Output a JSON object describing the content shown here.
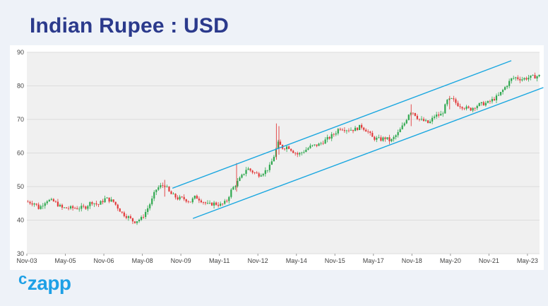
{
  "title": "Indian Rupee : USD",
  "brand": {
    "prefix": "c",
    "name": "zapp",
    "color": "#1ea0e6"
  },
  "colors": {
    "up": "#2fa84f",
    "down": "#e23b3b",
    "channel": "#1aa7e0",
    "grid": "#dcdcdc",
    "plot_bg": "#f0f0f0",
    "title": "#2b3a8c"
  },
  "chart_data": {
    "type": "candlestick",
    "title": "Indian Rupee : USD",
    "xlabel": "",
    "ylabel": "",
    "ylim": [
      30,
      90
    ],
    "yticks": [
      30,
      40,
      50,
      60,
      70,
      80,
      90
    ],
    "xticks": [
      "Nov-03",
      "May-05",
      "Nov-06",
      "May-08",
      "Nov-09",
      "May-11",
      "Nov-12",
      "May-14",
      "Nov-15",
      "May-17",
      "Nov-18",
      "May-20",
      "Nov-21",
      "May-23"
    ],
    "xrange": [
      2003.83,
      2023.8
    ],
    "grid": "horizontal",
    "price_path": [
      {
        "t": 2003.83,
        "v": 45.5
      },
      {
        "t": 2004.15,
        "v": 45.0
      },
      {
        "t": 2004.3,
        "v": 43.5
      },
      {
        "t": 2004.6,
        "v": 46.0
      },
      {
        "t": 2004.9,
        "v": 45.5
      },
      {
        "t": 2005.2,
        "v": 43.6
      },
      {
        "t": 2005.8,
        "v": 43.6
      },
      {
        "t": 2006.1,
        "v": 43.8
      },
      {
        "t": 2006.35,
        "v": 45.5
      },
      {
        "t": 2006.6,
        "v": 44.5
      },
      {
        "t": 2006.9,
        "v": 46.5
      },
      {
        "t": 2007.2,
        "v": 45.5
      },
      {
        "t": 2007.55,
        "v": 42.0
      },
      {
        "t": 2007.8,
        "v": 40.8
      },
      {
        "t": 2008.0,
        "v": 39.5
      },
      {
        "t": 2008.3,
        "v": 40.5
      },
      {
        "t": 2008.5,
        "v": 43.0
      },
      {
        "t": 2008.7,
        "v": 46.0
      },
      {
        "t": 2008.85,
        "v": 49.0
      },
      {
        "t": 2009.0,
        "v": 50.0
      },
      {
        "t": 2009.2,
        "v": 50.5
      },
      {
        "t": 2009.4,
        "v": 48.0
      },
      {
        "t": 2009.7,
        "v": 46.5
      },
      {
        "t": 2009.9,
        "v": 46.5
      },
      {
        "t": 2010.2,
        "v": 45.5
      },
      {
        "t": 2010.4,
        "v": 47.0
      },
      {
        "t": 2010.6,
        "v": 46.0
      },
      {
        "t": 2010.9,
        "v": 44.5
      },
      {
        "t": 2011.1,
        "v": 45.0
      },
      {
        "t": 2011.4,
        "v": 44.5
      },
      {
        "t": 2011.6,
        "v": 45.5
      },
      {
        "t": 2011.8,
        "v": 49.0
      },
      {
        "t": 2012.0,
        "v": 51.0
      },
      {
        "t": 2012.2,
        "v": 53.0
      },
      {
        "t": 2012.4,
        "v": 55.5
      },
      {
        "t": 2012.6,
        "v": 54.5
      },
      {
        "t": 2012.85,
        "v": 53.5
      },
      {
        "t": 2013.1,
        "v": 54.5
      },
      {
        "t": 2013.3,
        "v": 56.0
      },
      {
        "t": 2013.5,
        "v": 60.0
      },
      {
        "t": 2013.6,
        "v": 63.0
      },
      {
        "t": 2013.8,
        "v": 61.5
      },
      {
        "t": 2014.0,
        "v": 62.0
      },
      {
        "t": 2014.2,
        "v": 60.5
      },
      {
        "t": 2014.4,
        "v": 59.5
      },
      {
        "t": 2014.7,
        "v": 61.0
      },
      {
        "t": 2014.9,
        "v": 62.0
      },
      {
        "t": 2015.2,
        "v": 62.5
      },
      {
        "t": 2015.4,
        "v": 63.5
      },
      {
        "t": 2015.6,
        "v": 64.5
      },
      {
        "t": 2015.85,
        "v": 66.0
      },
      {
        "t": 2016.0,
        "v": 67.5
      },
      {
        "t": 2016.3,
        "v": 67.0
      },
      {
        "t": 2016.6,
        "v": 67.0
      },
      {
        "t": 2016.85,
        "v": 68.0
      },
      {
        "t": 2017.1,
        "v": 66.5
      },
      {
        "t": 2017.3,
        "v": 64.5
      },
      {
        "t": 2017.6,
        "v": 64.0
      },
      {
        "t": 2017.8,
        "v": 64.5
      },
      {
        "t": 2018.0,
        "v": 63.5
      },
      {
        "t": 2018.3,
        "v": 66.0
      },
      {
        "t": 2018.55,
        "v": 69.0
      },
      {
        "t": 2018.75,
        "v": 72.5
      },
      {
        "t": 2018.9,
        "v": 72.0
      },
      {
        "t": 2019.1,
        "v": 70.0
      },
      {
        "t": 2019.3,
        "v": 69.5
      },
      {
        "t": 2019.5,
        "v": 68.8
      },
      {
        "t": 2019.7,
        "v": 71.0
      },
      {
        "t": 2020.0,
        "v": 71.5
      },
      {
        "t": 2020.2,
        "v": 75.5
      },
      {
        "t": 2020.4,
        "v": 76.0
      },
      {
        "t": 2020.6,
        "v": 74.5
      },
      {
        "t": 2020.9,
        "v": 73.5
      },
      {
        "t": 2021.1,
        "v": 73.0
      },
      {
        "t": 2021.3,
        "v": 74.0
      },
      {
        "t": 2021.5,
        "v": 74.5
      },
      {
        "t": 2021.8,
        "v": 75.0
      },
      {
        "t": 2022.0,
        "v": 76.0
      },
      {
        "t": 2022.2,
        "v": 77.0
      },
      {
        "t": 2022.45,
        "v": 79.5
      },
      {
        "t": 2022.7,
        "v": 82.0
      },
      {
        "t": 2022.85,
        "v": 82.5
      },
      {
        "t": 2023.1,
        "v": 82.0
      },
      {
        "t": 2023.4,
        "v": 82.5
      },
      {
        "t": 2023.8,
        "v": 83.0
      }
    ],
    "spikes": [
      {
        "t": 2013.55,
        "high": 68.8,
        "low": 58.0
      },
      {
        "t": 2013.65,
        "high": 68.0,
        "low": 59.5
      },
      {
        "t": 2012.0,
        "high": 57.0,
        "low": 48.5
      },
      {
        "t": 2009.2,
        "high": 52.0,
        "low": 47.0
      },
      {
        "t": 2018.8,
        "high": 74.5,
        "low": 68.0
      },
      {
        "t": 2020.3,
        "high": 77.0,
        "low": 73.0
      }
    ],
    "channel_lines": [
      {
        "name": "upper",
        "from": {
          "t": 2009.5,
          "v": 49.5
        },
        "to": {
          "t": 2022.7,
          "v": 87.5
        }
      },
      {
        "name": "lower",
        "from": {
          "t": 2010.3,
          "v": 40.5
        },
        "to": {
          "t": 2023.95,
          "v": 79.5
        }
      }
    ]
  }
}
